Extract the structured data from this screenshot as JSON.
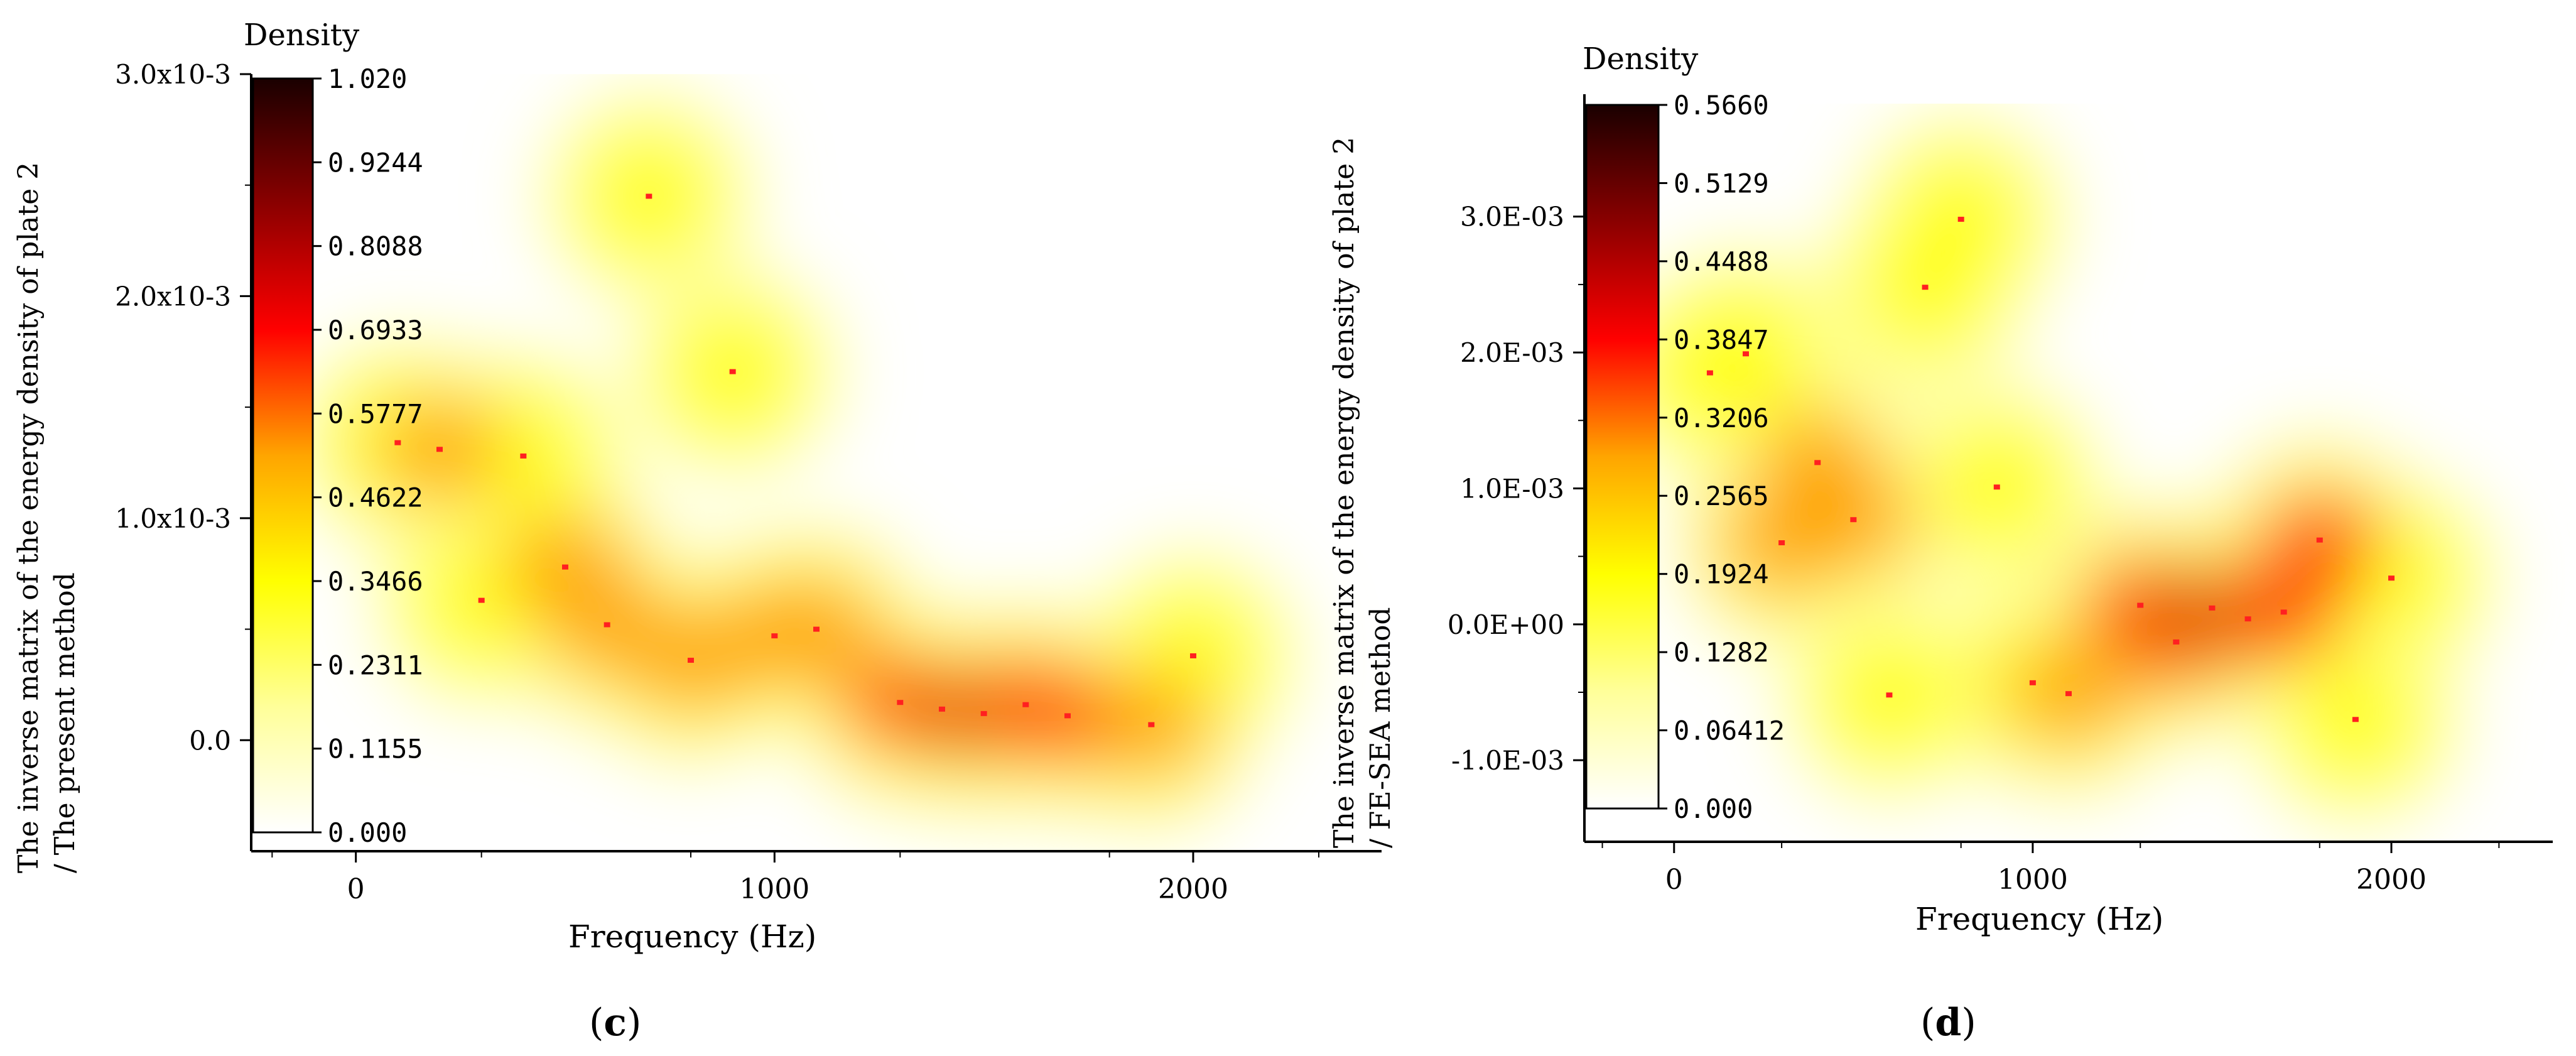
{
  "colors": {
    "scale": [
      "#ffffff",
      "#ffff99",
      "#ffff00",
      "#ffa500",
      "#ff0000",
      "#8b0000",
      "#1a0000"
    ],
    "point": "#ff2020",
    "axis": "#000000"
  },
  "chart_data": [
    {
      "type": "heatmap",
      "panel_label": "c",
      "xlabel": "Frequency (Hz)",
      "ylabel_line1": "The inverse matrix of the energy density of plate 2",
      "ylabel_line2": "/ The present method",
      "legend_title": "Density",
      "xlim": [
        -250,
        2450
      ],
      "ylim": [
        -0.0005,
        0.003
      ],
      "xticks": [
        {
          "v": 0,
          "label": "0"
        },
        {
          "v": 1000,
          "label": "1000"
        },
        {
          "v": 2000,
          "label": "2000"
        }
      ],
      "yticks": [
        {
          "v": 0,
          "label": "0.0"
        },
        {
          "v": 0.001,
          "label": "1.0x10-3"
        },
        {
          "v": 0.002,
          "label": "2.0x10-3"
        },
        {
          "v": 0.003,
          "label": "3.0x10-3"
        }
      ],
      "colorbar_min": 0,
      "colorbar_max": 1.02,
      "colorbar_ticks": [
        "1.020",
        "0.9244",
        "0.8088",
        "0.6933",
        "0.5777",
        "0.4622",
        "0.3466",
        "0.2311",
        "0.1155",
        "0.000"
      ],
      "points": [
        {
          "x": 100,
          "y": 0.00134
        },
        {
          "x": 200,
          "y": 0.00131
        },
        {
          "x": 300,
          "y": 0.00063
        },
        {
          "x": 400,
          "y": 0.00128
        },
        {
          "x": 500,
          "y": 0.00078
        },
        {
          "x": 600,
          "y": 0.00052
        },
        {
          "x": 700,
          "y": 0.00245
        },
        {
          "x": 800,
          "y": 0.00036
        },
        {
          "x": 900,
          "y": 0.00166
        },
        {
          "x": 1000,
          "y": 0.00047
        },
        {
          "x": 1100,
          "y": 0.0005
        },
        {
          "x": 1300,
          "y": 0.00017
        },
        {
          "x": 1400,
          "y": 0.00014
        },
        {
          "x": 1500,
          "y": 0.00012
        },
        {
          "x": 1600,
          "y": 0.00016
        },
        {
          "x": 1700,
          "y": 0.00011
        },
        {
          "x": 1900,
          "y": 7e-05
        },
        {
          "x": 2000,
          "y": 0.00038
        }
      ]
    },
    {
      "type": "heatmap",
      "panel_label": "d",
      "xlabel": "Frequency (Hz)",
      "ylabel_line1": "The inverse matrix of the energy density of plate 2",
      "ylabel_line2": "/ FE-SEA method",
      "legend_title": "Density",
      "xlim": [
        -250,
        2450
      ],
      "ylim": [
        -0.0016,
        0.0039
      ],
      "xticks": [
        {
          "v": 0,
          "label": "0"
        },
        {
          "v": 1000,
          "label": "1000"
        },
        {
          "v": 2000,
          "label": "2000"
        }
      ],
      "yticks": [
        {
          "v": -0.001,
          "label": "-1.0E-03"
        },
        {
          "v": 0,
          "label": "0.0E+00"
        },
        {
          "v": 0.001,
          "label": "1.0E-03"
        },
        {
          "v": 0.002,
          "label": "2.0E-03"
        },
        {
          "v": 0.003,
          "label": "3.0E-03"
        }
      ],
      "colorbar_min": 0,
      "colorbar_max": 0.566,
      "colorbar_ticks": [
        "0.5660",
        "0.5129",
        "0.4488",
        "0.3847",
        "0.3206",
        "0.2565",
        "0.1924",
        "0.1282",
        "0.06412",
        "0.000"
      ],
      "points": [
        {
          "x": 100,
          "y": 0.00185
        },
        {
          "x": 200,
          "y": 0.00199
        },
        {
          "x": 300,
          "y": 0.0006
        },
        {
          "x": 400,
          "y": 0.00119
        },
        {
          "x": 500,
          "y": 0.00077
        },
        {
          "x": 600,
          "y": -0.00052
        },
        {
          "x": 700,
          "y": 0.00248
        },
        {
          "x": 800,
          "y": 0.00298
        },
        {
          "x": 900,
          "y": 0.00101
        },
        {
          "x": 1000,
          "y": -0.00043
        },
        {
          "x": 1100,
          "y": -0.00051
        },
        {
          "x": 1300,
          "y": 0.00014
        },
        {
          "x": 1400,
          "y": -0.00013
        },
        {
          "x": 1500,
          "y": 0.00012
        },
        {
          "x": 1600,
          "y": 4e-05
        },
        {
          "x": 1700,
          "y": 9e-05
        },
        {
          "x": 1800,
          "y": 0.00062
        },
        {
          "x": 1900,
          "y": -0.0007
        },
        {
          "x": 2000,
          "y": 0.00034
        }
      ]
    }
  ]
}
